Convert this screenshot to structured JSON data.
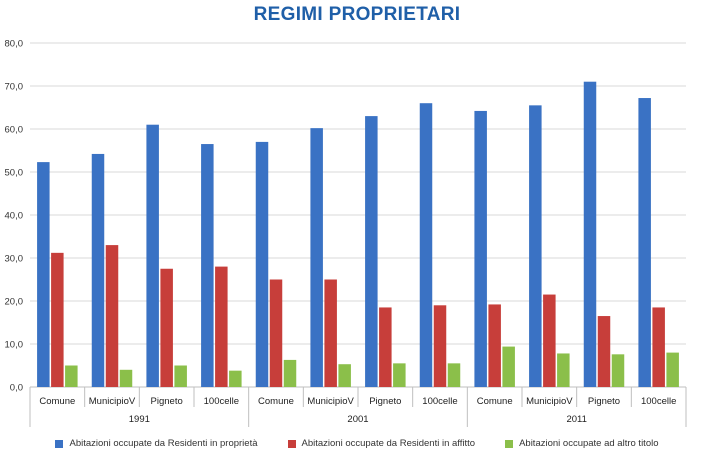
{
  "chart_data": {
    "type": "bar",
    "title": "REGIMI PROPRIETARI",
    "ylim": [
      0,
      80
    ],
    "yticks": [
      "0,0",
      "10,0",
      "20,0",
      "30,0",
      "40,0",
      "50,0",
      "60,0",
      "70,0",
      "80,0"
    ],
    "ytick_values": [
      0,
      10,
      20,
      30,
      40,
      50,
      60,
      70,
      80
    ],
    "groups": [
      "1991",
      "2001",
      "2011"
    ],
    "categories": [
      "Comune",
      "MunicipioV",
      "Pigneto",
      "100celle",
      "Comune",
      "MunicipioV",
      "Pigneto",
      "100celle",
      "Comune",
      "MunicipioV",
      "Pigneto",
      "100celle"
    ],
    "series": [
      {
        "name": "Abitazioni occupate da Residenti in proprietà",
        "color": "#3a72c4",
        "values": [
          52.3,
          54.2,
          61.0,
          56.5,
          57.0,
          60.2,
          63.0,
          66.0,
          64.2,
          65.5,
          71.0,
          67.2
        ]
      },
      {
        "name": "Abitazioni occupate da Residenti in affitto",
        "color": "#c73e3a",
        "values": [
          31.2,
          33.0,
          27.5,
          28.0,
          25.0,
          25.0,
          18.5,
          19.0,
          19.2,
          21.5,
          16.5,
          18.5
        ]
      },
      {
        "name": "Abitazioni occupate ad altro titolo",
        "color": "#8bbf4a",
        "values": [
          5.0,
          4.0,
          5.0,
          3.8,
          6.3,
          5.3,
          5.5,
          5.5,
          9.4,
          7.8,
          7.6,
          8.0
        ]
      }
    ]
  }
}
